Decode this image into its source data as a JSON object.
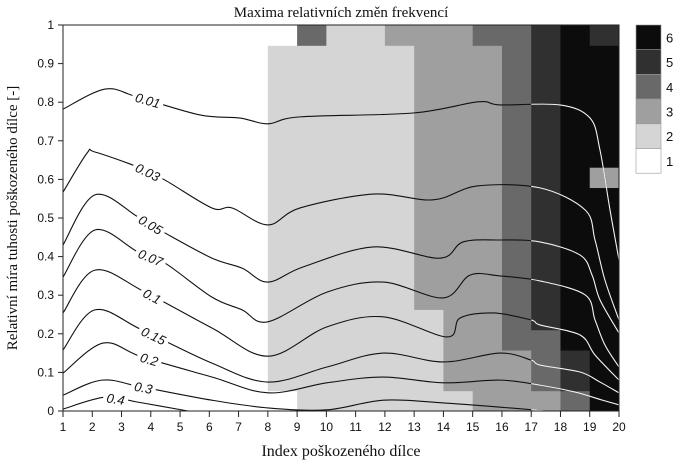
{
  "chart_data": {
    "type": "heatmap",
    "title": "Maxima relativních změn frekvencí",
    "xlabel": "Index poškozeného dílce",
    "ylabel": "Relativní míra tuhosti poškozeného dílce [-]",
    "xlim": [
      1,
      20
    ],
    "ylim": [
      0,
      1
    ],
    "xticks": [
      "1",
      "2",
      "3",
      "4",
      "5",
      "6",
      "7",
      "8",
      "9",
      "10",
      "11",
      "12",
      "13",
      "14",
      "15",
      "16",
      "17",
      "18",
      "19",
      "20"
    ],
    "yticks": [
      "0",
      "0.1",
      "0.2",
      "0.3",
      "0.4",
      "0.5",
      "0.6",
      "0.7",
      "0.8",
      "0.9",
      "1"
    ],
    "grid": false,
    "heatmap": {
      "x_edges_start": 1,
      "x_step": 1,
      "rows": 19,
      "columns_runs_bottom_to_top": [
        [
          [
            1,
            19
          ]
        ],
        [
          [
            1,
            19
          ]
        ],
        [
          [
            1,
            19
          ]
        ],
        [
          [
            1,
            19
          ]
        ],
        [
          [
            1,
            19
          ]
        ],
        [
          [
            1,
            19
          ]
        ],
        [
          [
            1,
            19
          ]
        ],
        [
          [
            1,
            1
          ],
          [
            2,
            17
          ],
          [
            1,
            1
          ]
        ],
        [
          [
            2,
            18
          ],
          [
            4,
            1
          ]
        ],
        [
          [
            2,
            19
          ]
        ],
        [
          [
            2,
            19
          ]
        ],
        [
          [
            2,
            18
          ],
          [
            3,
            1
          ]
        ],
        [
          [
            2,
            5
          ],
          [
            3,
            14
          ]
        ],
        [
          [
            2,
            1
          ],
          [
            3,
            18
          ]
        ],
        [
          [
            3,
            18
          ],
          [
            4,
            1
          ]
        ],
        [
          [
            3,
            3
          ],
          [
            4,
            16
          ]
        ],
        [
          [
            3,
            1
          ],
          [
            4,
            3
          ],
          [
            5,
            15
          ]
        ],
        [
          [
            4,
            1
          ],
          [
            5,
            2
          ],
          [
            6,
            16
          ]
        ],
        [
          [
            6,
            11
          ],
          [
            3,
            1
          ],
          [
            6,
            6
          ],
          [
            5,
            1
          ]
        ]
      ],
      "levels": [
        "1",
        "2",
        "3",
        "4",
        "5",
        "6"
      ],
      "level_colors": [
        "#ffffff",
        "#d6d5d6",
        "#a09fa0",
        "#6a696a",
        "#313030",
        "#0c0c0c"
      ],
      "colorbar_placement": "right"
    },
    "contours": [
      {
        "label": "0.01",
        "points": [
          [
            1,
            0.782
          ],
          [
            2.44,
            0.834
          ],
          [
            3.56,
            0.813
          ],
          [
            5.68,
            0.767
          ],
          [
            7.05,
            0.759
          ],
          [
            8.0,
            0.744
          ],
          [
            9.1,
            0.762
          ],
          [
            12.96,
            0.772
          ],
          [
            15.18,
            0.801
          ],
          [
            15.93,
            0.793
          ],
          [
            17.98,
            0.793
          ],
          [
            19.01,
            0.759
          ],
          [
            19.35,
            0.676
          ],
          [
            19.69,
            0.522
          ],
          [
            20,
            0.391
          ]
        ]
      },
      {
        "label": "0.03",
        "points": [
          [
            1,
            0.567
          ],
          [
            1.82,
            0.668
          ],
          [
            2.09,
            0.671
          ],
          [
            3.56,
            0.632
          ],
          [
            4.49,
            0.598
          ],
          [
            6.09,
            0.526
          ],
          [
            6.78,
            0.526
          ],
          [
            8.0,
            0.482
          ],
          [
            9.1,
            0.526
          ],
          [
            11.6,
            0.562
          ],
          [
            13.65,
            0.547
          ],
          [
            15.15,
            0.583
          ],
          [
            17.3,
            0.578
          ],
          [
            18.84,
            0.521
          ],
          [
            19.18,
            0.443
          ],
          [
            19.52,
            0.339
          ],
          [
            20,
            0.236
          ]
        ]
      },
      {
        "label": "0.05",
        "points": [
          [
            1,
            0.43
          ],
          [
            2.09,
            0.56
          ],
          [
            3.56,
            0.503
          ],
          [
            4.49,
            0.461
          ],
          [
            6.09,
            0.396
          ],
          [
            7.12,
            0.37
          ],
          [
            8.0,
            0.334
          ],
          [
            9.2,
            0.373
          ],
          [
            11.6,
            0.425
          ],
          [
            13.88,
            0.396
          ],
          [
            14.67,
            0.438
          ],
          [
            15.93,
            0.443
          ],
          [
            17.3,
            0.438
          ],
          [
            18.67,
            0.404
          ],
          [
            19.08,
            0.352
          ],
          [
            19.35,
            0.288
          ],
          [
            20,
            0.202
          ]
        ]
      },
      {
        "label": "0.07",
        "points": [
          [
            1,
            0.347
          ],
          [
            2.09,
            0.469
          ],
          [
            3.56,
            0.412
          ],
          [
            4.49,
            0.383
          ],
          [
            6.09,
            0.295
          ],
          [
            7.12,
            0.262
          ],
          [
            8.0,
            0.231
          ],
          [
            10.02,
            0.308
          ],
          [
            11.94,
            0.334
          ],
          [
            13.99,
            0.293
          ],
          [
            14.91,
            0.352
          ],
          [
            15.93,
            0.35
          ],
          [
            17.3,
            0.337
          ],
          [
            18.84,
            0.301
          ],
          [
            19.18,
            0.236
          ],
          [
            19.52,
            0.171
          ],
          [
            20,
            0.114
          ]
        ]
      },
      {
        "label": "0.1",
        "points": [
          [
            1,
            0.254
          ],
          [
            2.09,
            0.365
          ],
          [
            3.8,
            0.308
          ],
          [
            6.09,
            0.215
          ],
          [
            8.0,
            0.142
          ],
          [
            10.02,
            0.218
          ],
          [
            11.94,
            0.244
          ],
          [
            14.12,
            0.192
          ],
          [
            14.57,
            0.241
          ],
          [
            15.7,
            0.254
          ],
          [
            16.99,
            0.236
          ],
          [
            17.3,
            0.223
          ],
          [
            18.67,
            0.197
          ],
          [
            19.18,
            0.145
          ],
          [
            20,
            0.08
          ]
        ]
      },
      {
        "label": "0.15",
        "points": [
          [
            1,
            0.158
          ],
          [
            2.09,
            0.262
          ],
          [
            3.7,
            0.21
          ],
          [
            6.09,
            0.124
          ],
          [
            8.0,
            0.075
          ],
          [
            10.02,
            0.114
          ],
          [
            11.94,
            0.15
          ],
          [
            13.99,
            0.127
          ],
          [
            15.93,
            0.15
          ],
          [
            16.99,
            0.132
          ],
          [
            17.3,
            0.119
          ],
          [
            18.67,
            0.101
          ],
          [
            19.35,
            0.075
          ],
          [
            20,
            0.047
          ]
        ]
      },
      {
        "label": "0.2",
        "points": [
          [
            1,
            0.098
          ],
          [
            2.37,
            0.176
          ],
          [
            3.7,
            0.14
          ],
          [
            6.09,
            0.088
          ],
          [
            8.0,
            0.047
          ],
          [
            10.02,
            0.073
          ],
          [
            11.94,
            0.088
          ],
          [
            13.99,
            0.073
          ],
          [
            15.93,
            0.08
          ],
          [
            17.3,
            0.067
          ],
          [
            18.5,
            0.049
          ],
          [
            19.35,
            0.03
          ],
          [
            20,
            0.016
          ]
        ]
      },
      {
        "label": "0.3",
        "points": [
          [
            1,
            0.041
          ],
          [
            2.33,
            0.08
          ],
          [
            3.7,
            0.062
          ],
          [
            6.09,
            0.028
          ],
          [
            8.0,
            0.008
          ],
          [
            10.02,
            0.003
          ],
          [
            11.94,
            0.028
          ],
          [
            13.99,
            0.021
          ],
          [
            15.93,
            0.01
          ],
          [
            17.54,
            0
          ]
        ]
      },
      {
        "label": "0.4",
        "points": [
          [
            1,
            0.005
          ],
          [
            2.44,
            0.036
          ],
          [
            3.56,
            0.023
          ],
          [
            5.27,
            0
          ]
        ]
      }
    ]
  }
}
